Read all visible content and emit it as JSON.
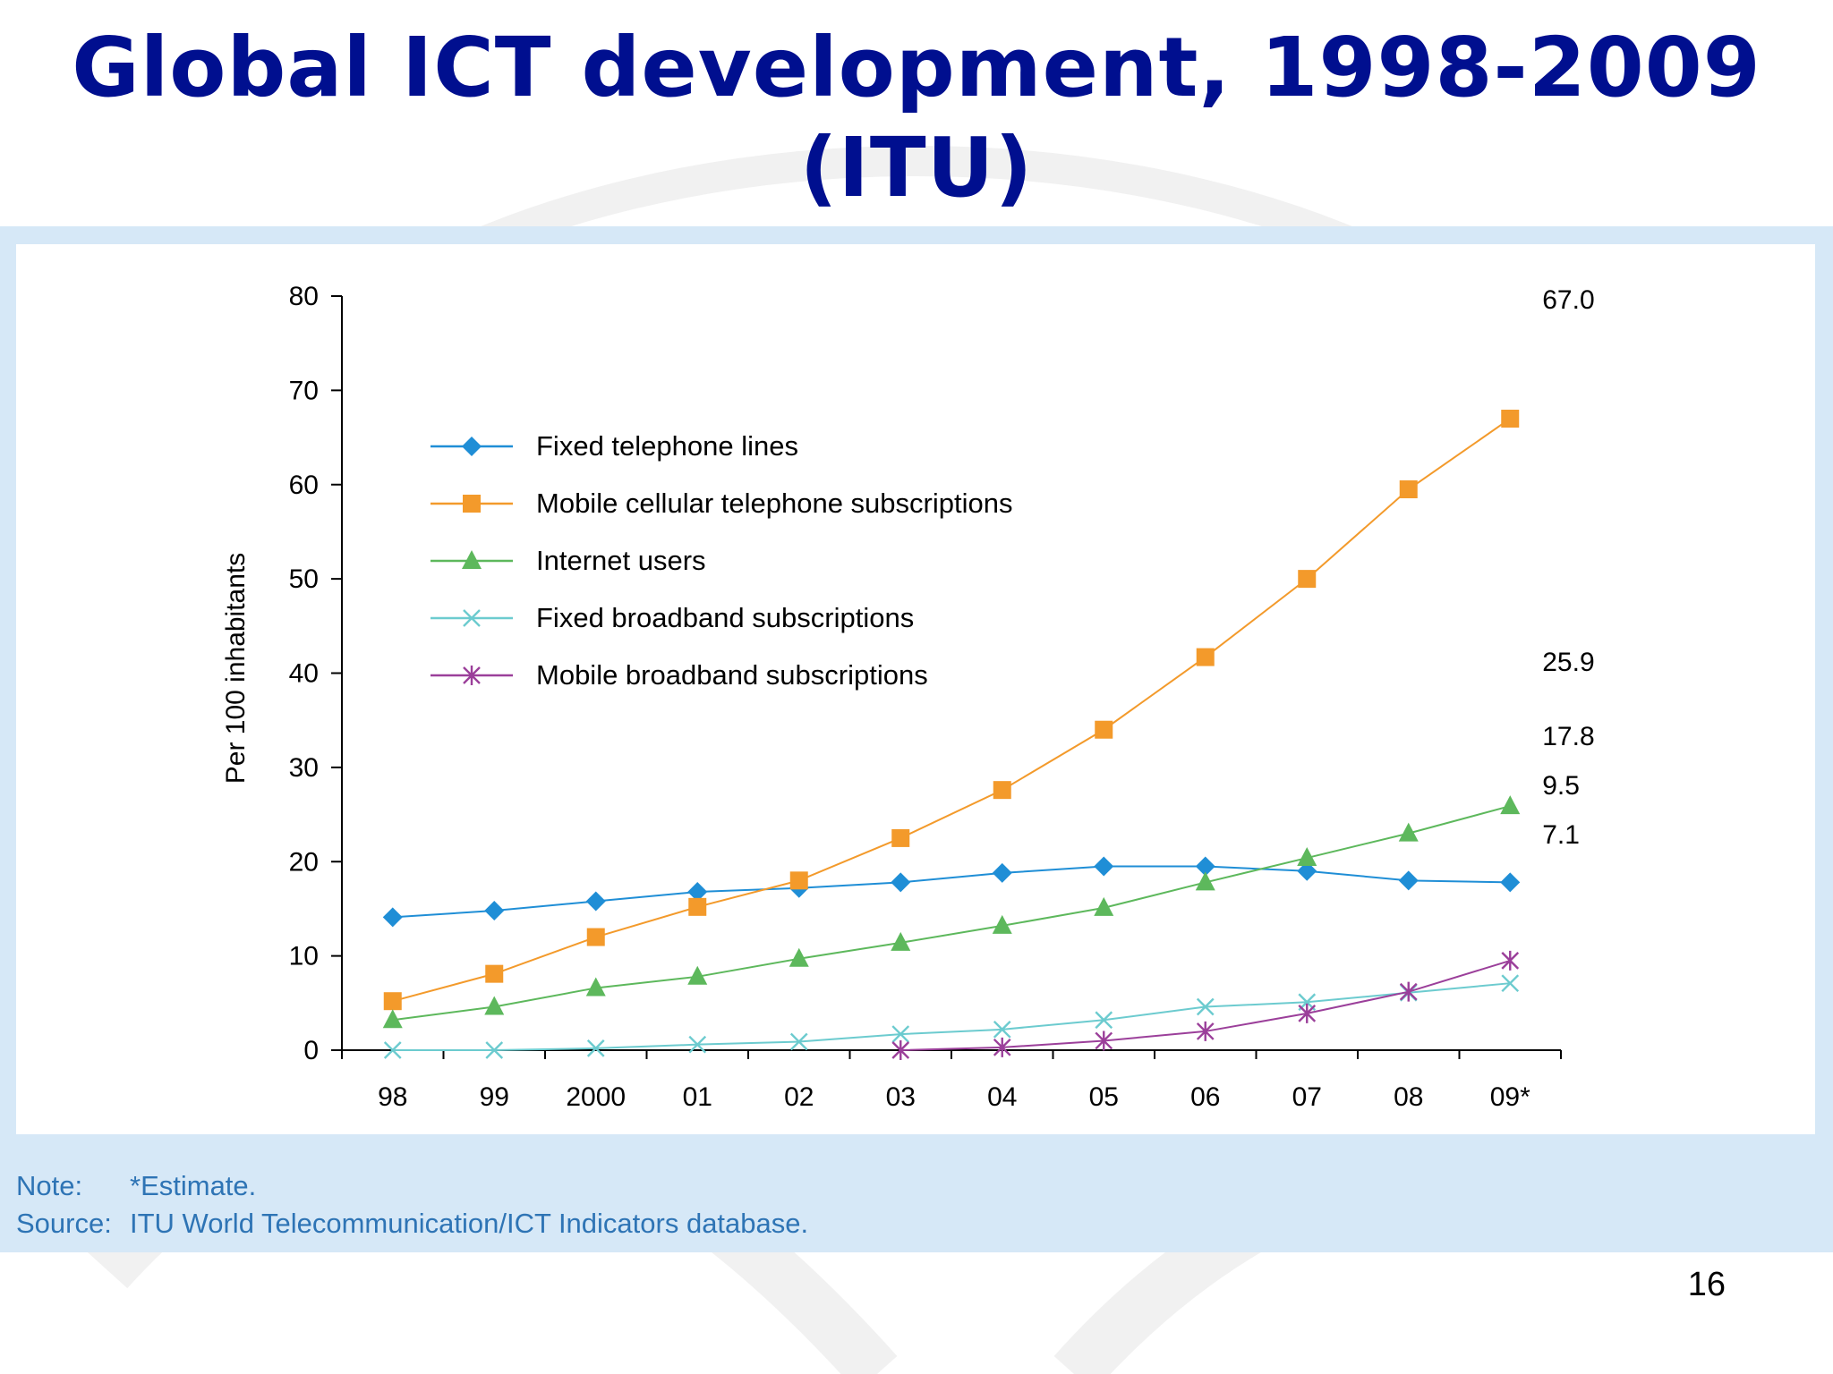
{
  "slide": {
    "title_line1": "Global ICT development, 1998-2009",
    "title_line2": "(ITU)",
    "note_label": "Note:",
    "note_text": "*Estimate.",
    "source_label": "Source:",
    "source_text": "ITU World Telecommunication/ICT Indicators database.",
    "page_number": "16"
  },
  "chart_data": {
    "type": "line",
    "title": "Global ICT development, 1998-2009 (ITU)",
    "ylabel": "Per 100 inhabitants",
    "xlabel": "",
    "ylim": [
      0,
      80
    ],
    "yticks": [
      0,
      10,
      20,
      30,
      40,
      50,
      60,
      70,
      80
    ],
    "categories": [
      "98",
      "99",
      "2000",
      "01",
      "02",
      "03",
      "04",
      "05",
      "06",
      "07",
      "08",
      "09*"
    ],
    "legend_position": "upper-left",
    "grid": false,
    "series": [
      {
        "name": "Fixed telephone lines",
        "color": "#1f8ed6",
        "marker": "diamond",
        "values": [
          14.1,
          14.8,
          15.8,
          16.8,
          17.2,
          17.8,
          18.8,
          19.5,
          19.5,
          19.0,
          18.0,
          17.8
        ],
        "end_label": "17.8"
      },
      {
        "name": "Mobile cellular telephone subscriptions",
        "color": "#f39a2b",
        "marker": "square",
        "values": [
          5.2,
          8.1,
          12.0,
          15.2,
          18.0,
          22.5,
          27.6,
          34.0,
          41.7,
          50.0,
          59.5,
          67.0
        ],
        "end_label": "67.0"
      },
      {
        "name": "Internet users",
        "color": "#5db85c",
        "marker": "triangle",
        "values": [
          3.2,
          4.6,
          6.6,
          7.8,
          9.7,
          11.4,
          13.2,
          15.1,
          17.8,
          20.4,
          23.0,
          25.9
        ],
        "end_label": "25.9"
      },
      {
        "name": "Fixed broadband subscriptions",
        "color": "#6ccbcf",
        "marker": "x",
        "values": [
          0.0,
          0.0,
          0.2,
          0.6,
          0.9,
          1.7,
          2.2,
          3.2,
          4.6,
          5.1,
          6.1,
          7.1
        ],
        "end_label": "7.1"
      },
      {
        "name": "Mobile broadband subscriptions",
        "color": "#9b3f9a",
        "marker": "star",
        "values": [
          null,
          null,
          null,
          null,
          null,
          0.0,
          0.3,
          1.0,
          2.0,
          3.9,
          6.2,
          9.5
        ],
        "end_label": "9.5"
      }
    ]
  }
}
